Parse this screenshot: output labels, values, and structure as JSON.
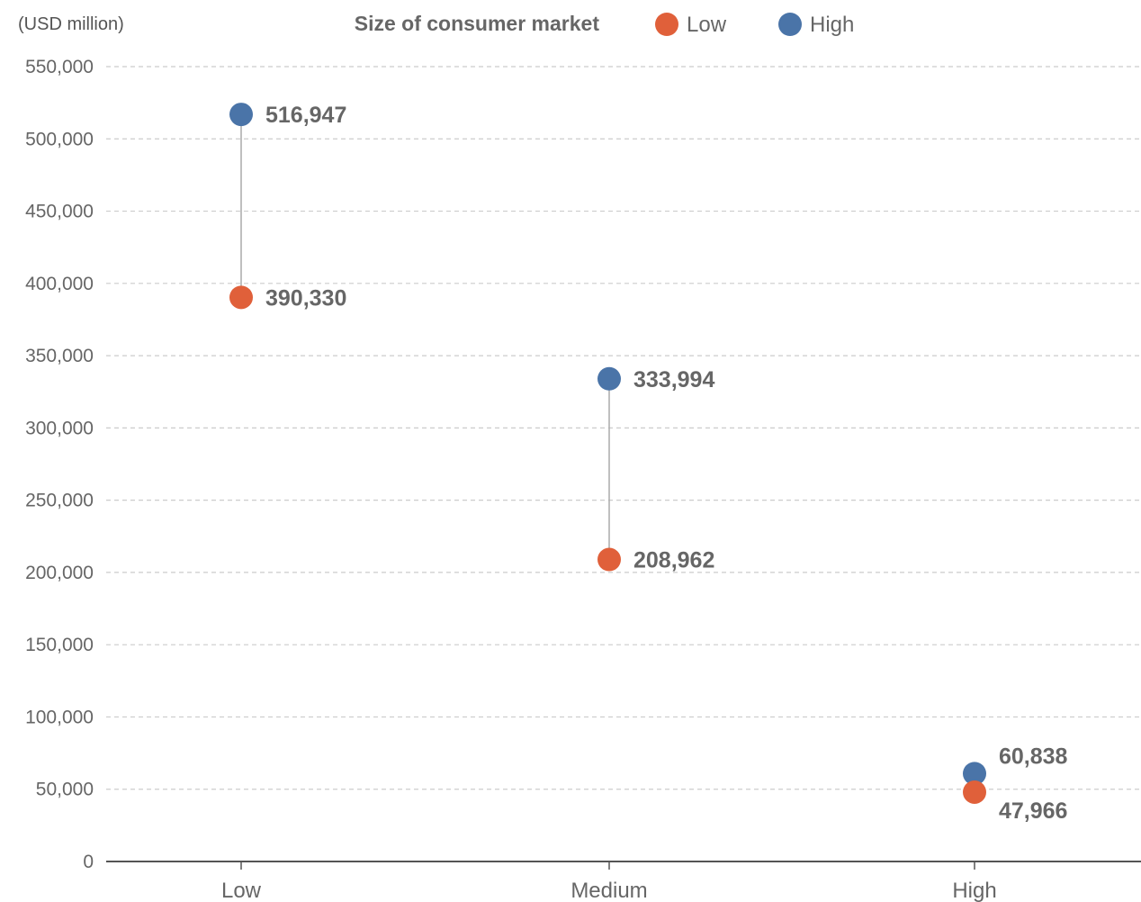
{
  "chart_data": {
    "type": "scatter",
    "subtype": "dumbbell",
    "unit_label": "(USD million)",
    "legend": {
      "title": "Size of consumer market",
      "position": "top",
      "entries": [
        {
          "name": "Low",
          "color": "#e0603a"
        },
        {
          "name": "High",
          "color": "#4a74a8"
        }
      ]
    },
    "categories": [
      "Low",
      "Medium",
      "High"
    ],
    "series": [
      {
        "name": "High",
        "color": "#4a74a8",
        "values": [
          516947,
          333994,
          60838
        ],
        "labels": [
          "516,947",
          "333,994",
          "60,838"
        ]
      },
      {
        "name": "Low",
        "color": "#e0603a",
        "values": [
          390330,
          208962,
          47966
        ],
        "labels": [
          "390,330",
          "208,962",
          "47,966"
        ]
      }
    ],
    "ylim": [
      0,
      550000
    ],
    "yticks": [
      0,
      50000,
      100000,
      150000,
      200000,
      250000,
      300000,
      350000,
      400000,
      450000,
      500000,
      550000
    ],
    "ytick_labels": [
      "0",
      "50,000",
      "100,000",
      "150,000",
      "200,000",
      "250,000",
      "300,000",
      "350,000",
      "400,000",
      "450,000",
      "500,000",
      "550,000"
    ],
    "grid": true,
    "connector_color": "#aaaaaa",
    "grid_color": "#cccccc",
    "axis_color": "#555555"
  }
}
